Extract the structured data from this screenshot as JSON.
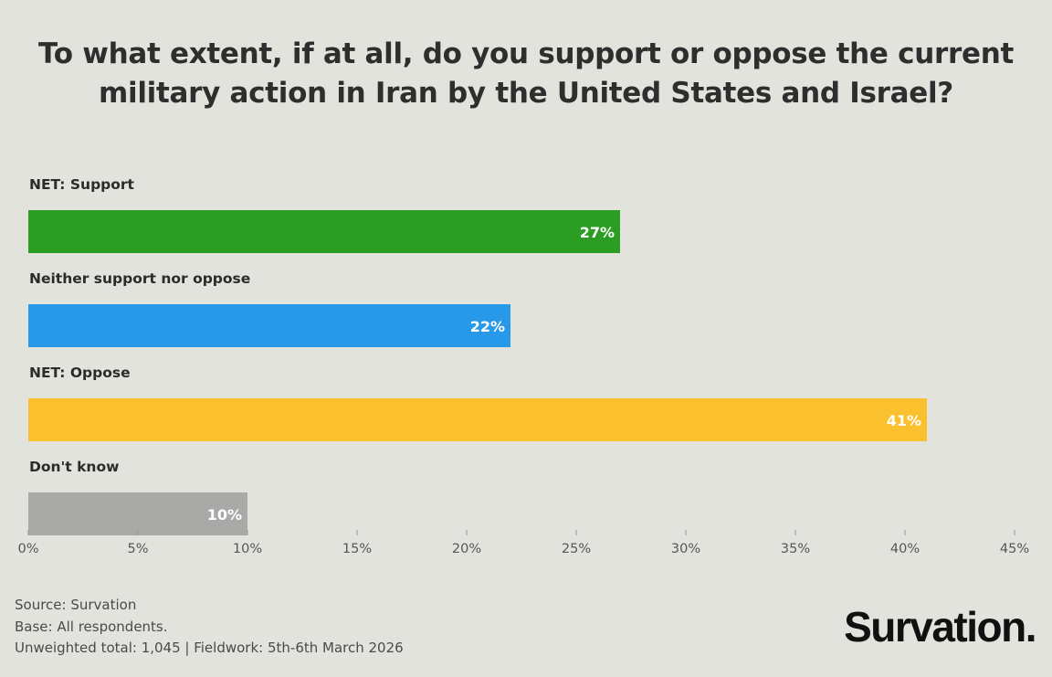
{
  "title_lines": [
    "To what extent, if at all, do you support or oppose the current",
    "military action in Iran by the United States and Israel?"
  ],
  "chart_data": {
    "type": "bar",
    "orientation": "horizontal",
    "title": "To what extent, if at all, do you support or oppose the current military action in Iran by the United States and Israel?",
    "categories": [
      "NET: Support",
      "Neither support nor oppose",
      "NET: Oppose",
      "Don't know"
    ],
    "values": [
      27,
      22,
      41,
      10
    ],
    "value_labels": [
      "27%",
      "22%",
      "41%",
      "10%"
    ],
    "colors": [
      "#2a9d22",
      "#2898e8",
      "#fbc02d",
      "#a9a9a7"
    ],
    "xlim": [
      0,
      45
    ],
    "xticks": [
      0,
      5,
      10,
      15,
      20,
      25,
      30,
      35,
      40,
      45
    ],
    "xtick_labels": [
      "0%",
      "5%",
      "10%",
      "15%",
      "20%",
      "25%",
      "30%",
      "35%",
      "40%",
      "45%"
    ],
    "xlabel": "",
    "ylabel": "",
    "grid": false
  },
  "footer": {
    "source": "Source: Survation",
    "base": "Base: All respondents.",
    "fieldwork": "Unweighted total: 1,045 | Fieldwork: 5th-6th March 2026"
  },
  "logo_text": "Survation."
}
